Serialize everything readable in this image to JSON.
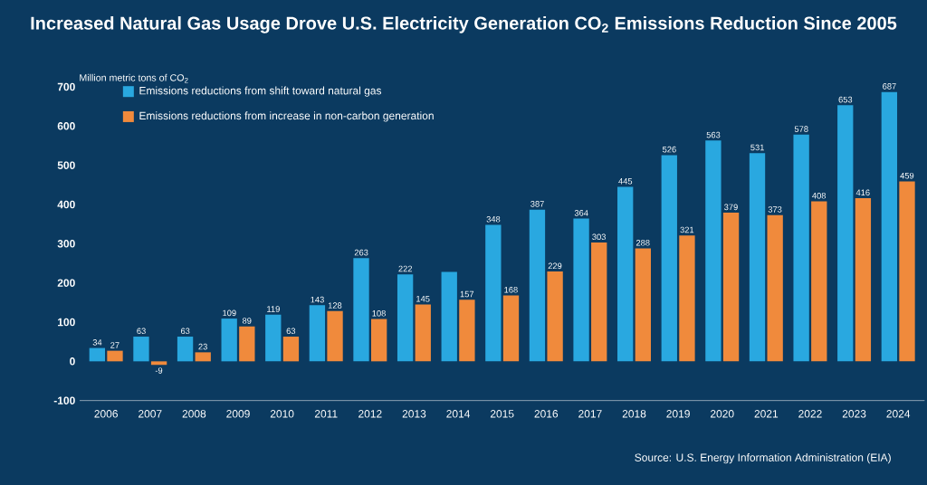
{
  "chart_data": {
    "type": "bar",
    "title": "Increased Natural Gas Usage Drove U.S. Electricity Generation CO$_{2}$ Emissions Reduction Since 2005",
    "ylabel": "Million metric tons of CO$_{2}$",
    "categories": [
      "2006",
      "2007",
      "2008",
      "2009",
      "2010",
      "2011",
      "2012",
      "2013",
      "2014",
      "2015",
      "2016",
      "2017",
      "2018",
      "2019",
      "2020",
      "2021",
      "2022",
      "2023",
      "2024"
    ],
    "series": [
      {
        "name": "Emissions reductions from shift toward natural gas",
        "color": "#29a8e0",
        "values": [
          34,
          63,
          63,
          109,
          119,
          143,
          263,
          222,
          228,
          348,
          387,
          364,
          445,
          526,
          563,
          531,
          578,
          653,
          687
        ],
        "value_labels": [
          "34",
          "63",
          "63",
          "109",
          "119",
          "143",
          "263",
          "222",
          null,
          "348",
          "387",
          "364",
          "445",
          "526",
          "563",
          "531",
          "578",
          "653",
          "687"
        ]
      },
      {
        "name": "Emissions reductions from increase in non-carbon generation",
        "color": "#f08a3c",
        "values": [
          27,
          -9,
          23,
          89,
          63,
          128,
          108,
          145,
          157,
          168,
          229,
          303,
          288,
          321,
          379,
          373,
          408,
          416,
          459
        ],
        "value_labels": [
          "27",
          "-9",
          "23",
          "89",
          "63",
          "128",
          "108",
          "145",
          "157",
          "168",
          "229",
          "303",
          "288",
          "321",
          "379",
          "373",
          "408",
          "416",
          "459"
        ]
      }
    ],
    "ylim": [
      -100,
      700
    ],
    "yticks": [
      -100,
      0,
      100,
      200,
      300,
      400,
      500,
      600,
      700
    ],
    "grid": false,
    "legend": "top left",
    "annotations": [
      "Source: U.S. Energy Information Administration (EIA)"
    ]
  }
}
